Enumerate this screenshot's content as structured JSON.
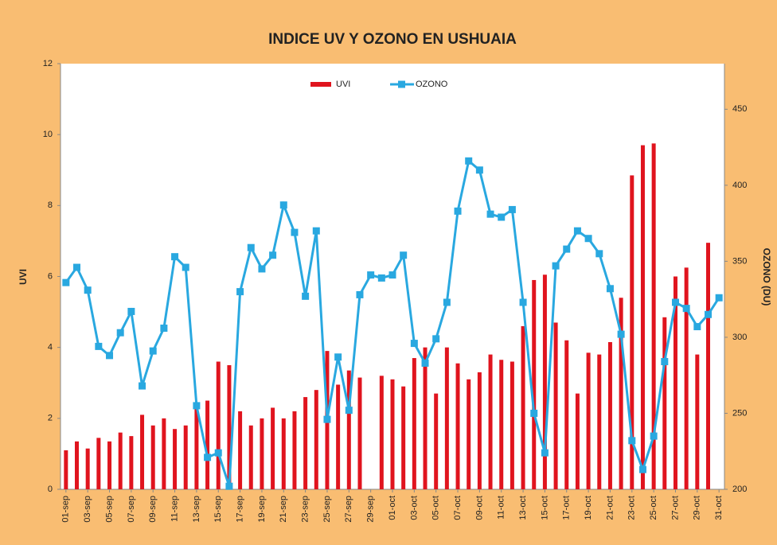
{
  "chart_data": {
    "type": "bar-line",
    "title": "INDICE UV Y OZONO EN USHUAIA",
    "y_label": "UVI",
    "y2_label": "OZONO (DU)",
    "categories": [
      "01-sep",
      null,
      "03-sep",
      null,
      "05-sep",
      null,
      "07-sep",
      null,
      "09-sep",
      null,
      "11-sep",
      null,
      "13-sep",
      null,
      "15-sep",
      null,
      "17-sep",
      null,
      "19-sep",
      null,
      "21-sep",
      null,
      "23-sep",
      null,
      "25-sep",
      null,
      "27-sep",
      null,
      "29-sep",
      null,
      "01-oct",
      null,
      "03-oct",
      null,
      "05-oct",
      null,
      "07-oct",
      null,
      "09-oct",
      null,
      "11-oct",
      null,
      "13-oct",
      null,
      "15-oct",
      null,
      "17-oct",
      null,
      "19-oct",
      null,
      "21-oct",
      null,
      "23-oct",
      null,
      "25-oct",
      null,
      "27-oct",
      null,
      "29-oct",
      null,
      "31-oct"
    ],
    "series": [
      {
        "name": "UVI",
        "color": "#e0141e",
        "kind": "bar",
        "values": [
          1.1,
          1.35,
          1.15,
          1.45,
          1.35,
          1.6,
          1.5,
          2.1,
          1.8,
          2.0,
          1.7,
          1.8,
          2.3,
          2.5,
          3.6,
          3.5,
          2.2,
          1.8,
          2.0,
          2.3,
          2.0,
          2.2,
          2.6,
          2.8,
          3.9,
          2.95,
          3.35,
          3.15,
          null,
          3.2,
          3.1,
          2.9,
          3.7,
          4.0,
          2.7,
          4.0,
          3.55,
          3.1,
          3.3,
          3.8,
          3.65,
          3.6,
          4.6,
          5.9,
          6.05,
          4.7,
          4.2,
          2.7,
          3.85,
          3.8,
          4.15,
          5.4,
          8.85,
          9.7,
          9.75,
          4.85,
          6.0,
          6.25,
          3.8,
          6.95,
          null
        ]
      },
      {
        "name": "OZONO",
        "color": "#29a8e0",
        "kind": "line",
        "axis": "y2",
        "values": [
          336,
          346,
          331,
          294,
          288,
          303,
          317,
          268,
          291,
          306,
          353,
          346,
          255,
          221,
          224,
          202,
          330,
          359,
          345,
          354,
          387,
          369,
          327,
          370,
          246,
          287,
          252,
          328,
          341,
          339,
          341,
          354,
          296,
          283,
          299,
          323,
          383,
          416,
          410,
          381,
          379,
          384,
          323,
          250,
          224,
          347,
          358,
          370,
          365,
          355,
          332,
          302,
          232,
          213,
          235,
          284,
          323,
          319,
          307,
          315,
          326
        ]
      }
    ],
    "ylim": [
      0,
      12
    ],
    "yticks": [
      0,
      2,
      4,
      6,
      8,
      10,
      12
    ],
    "y2lim": [
      200,
      480
    ],
    "y2ticks": [
      200,
      250,
      300,
      350,
      400,
      450
    ],
    "legend": "top"
  }
}
